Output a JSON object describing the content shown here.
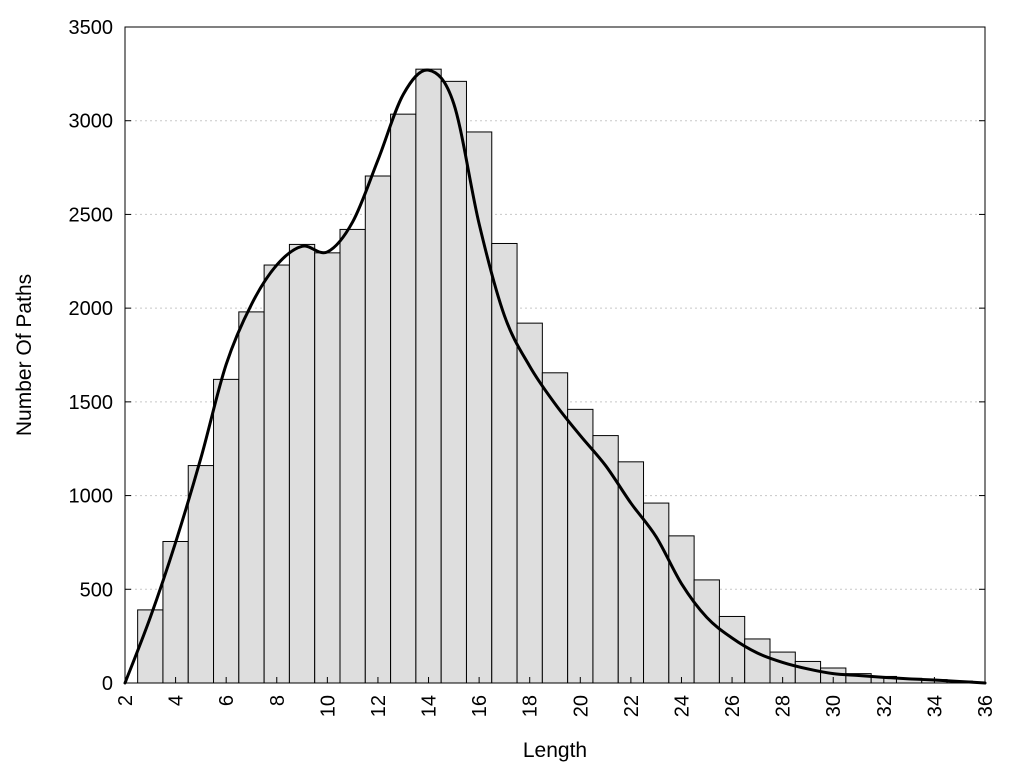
{
  "chart_data": {
    "type": "bar",
    "xlabel": "Length",
    "ylabel": "Number Of Paths",
    "xlim": [
      2,
      36
    ],
    "ylim": [
      0,
      3500
    ],
    "x_ticks": [
      2,
      4,
      6,
      8,
      10,
      12,
      14,
      16,
      18,
      20,
      22,
      24,
      26,
      28,
      30,
      32,
      34,
      36
    ],
    "y_ticks": [
      0,
      500,
      1000,
      1500,
      2000,
      2500,
      3000,
      3500
    ],
    "grid": "horizontal dotted",
    "bars": {
      "x": [
        3,
        4,
        5,
        6,
        7,
        8,
        9,
        10,
        11,
        12,
        13,
        14,
        15,
        16,
        17,
        18,
        19,
        20,
        21,
        22,
        23,
        24,
        25,
        26,
        27,
        28,
        29,
        30,
        31,
        32,
        33,
        34,
        35
      ],
      "values": [
        390,
        755,
        1160,
        1620,
        1980,
        2230,
        2340,
        2295,
        2420,
        2705,
        3035,
        3275,
        3210,
        2940,
        2345,
        1920,
        1655,
        1460,
        1320,
        1180,
        960,
        785,
        550,
        355,
        235,
        165,
        115,
        80,
        50,
        35,
        25,
        18,
        10
      ],
      "fill_color": "#dedede",
      "edge_color": "#000000"
    },
    "curve": {
      "type": "line",
      "color": "#000000",
      "x": [
        2,
        3,
        4,
        5,
        6,
        7,
        8,
        9,
        10,
        11,
        12,
        13,
        14,
        15,
        16,
        17,
        18,
        19,
        20,
        21,
        22,
        23,
        24,
        25,
        26,
        27,
        28,
        29,
        30,
        31,
        32,
        33,
        34,
        35,
        36
      ],
      "y": [
        0,
        350,
        750,
        1200,
        1700,
        2020,
        2230,
        2330,
        2300,
        2460,
        2790,
        3140,
        3270,
        3090,
        2450,
        1960,
        1690,
        1490,
        1320,
        1160,
        960,
        780,
        530,
        350,
        240,
        160,
        110,
        75,
        50,
        40,
        30,
        22,
        16,
        8,
        0
      ]
    }
  }
}
